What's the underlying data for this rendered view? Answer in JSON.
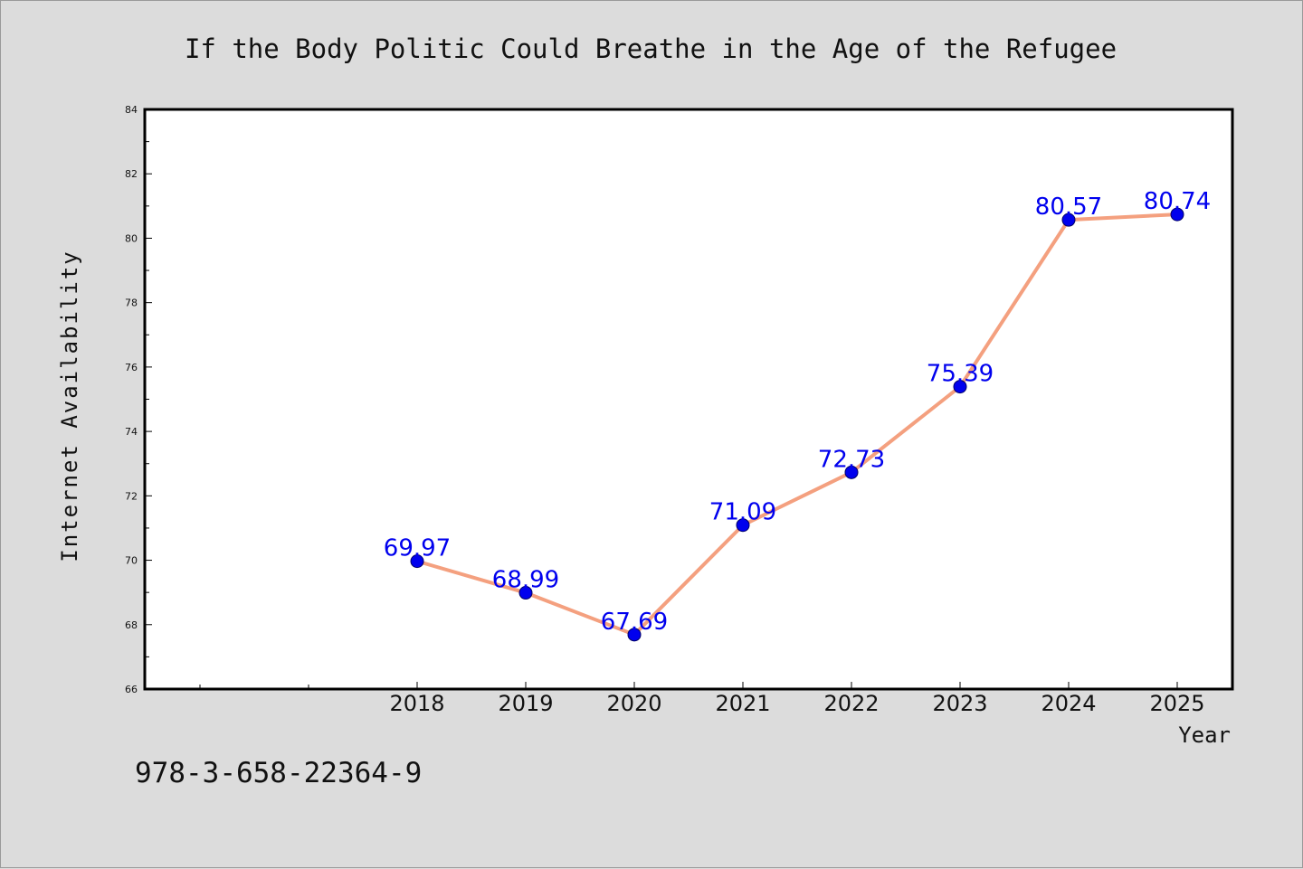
{
  "chart_data": {
    "type": "line",
    "title": "If the Body Politic Could Breathe in the Age of the Refugee",
    "xlabel": "Year",
    "ylabel": "Internet Availability",
    "x": [
      "2018",
      "2019",
      "2020",
      "2021",
      "2022",
      "2023",
      "2024",
      "2025"
    ],
    "series": [
      {
        "values": [
          69.97,
          68.99,
          67.69,
          71.09,
          72.73,
          75.39,
          80.57,
          80.74
        ],
        "data_labels": [
          "69.97",
          "68.99",
          "67.69",
          "71.09",
          "72.73",
          "75.39",
          "80.57",
          "80.74"
        ],
        "line_color": "#f4a07f",
        "marker_color": "#0000ee"
      }
    ],
    "ylim": [
      66,
      84
    ],
    "y_ticks": [
      "66",
      "68",
      "70",
      "72",
      "74",
      "76",
      "78",
      "80",
      "82",
      "84"
    ],
    "grid": false,
    "legend": "none"
  },
  "annotation": "978-3-658-22364-9",
  "colors": {
    "background": "#dcdcdc",
    "plot_background": "#ffffff",
    "axes": "#000000"
  }
}
